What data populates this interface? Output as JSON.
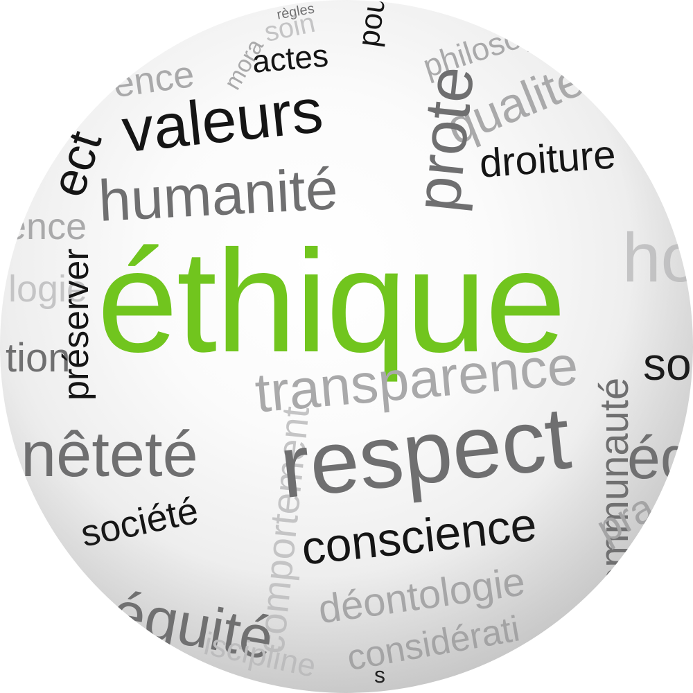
{
  "words": {
    "ethique": "éthique",
    "valeurs": "valeurs",
    "humanite": "humanité",
    "actes": "actes",
    "soin": "soin",
    "philosophie": "philosoph",
    "qualite": "qualité",
    "protection": "prote",
    "droiture": "droiture",
    "transparence": "transparence",
    "respect": "respect",
    "conscience": "conscience",
    "deontologie": "déontologie",
    "consideration": "considérati",
    "societe": "société",
    "equite": "équité",
    "honnetete": "nêteté",
    "preserver": "préserver",
    "communaute": "communauté",
    "comportement": "comportement",
    "societe_right": "soci",
    "equite_right": "équ",
    "honnetete_right": "ho",
    "morale": "mora",
    "tion": "tion",
    "ence_left": "ence",
    "ence_top": "ence",
    "ect": "ect",
    "logie": "logie",
    "pra": "pra",
    "iscipline": "iscipline",
    "regles": "règles",
    "pour": "pou",
    "sur": "s"
  },
  "colors": {
    "green": "#71c51e",
    "dark": "#151515",
    "mid": "#6f6f70",
    "light": "#a9a9aa"
  }
}
